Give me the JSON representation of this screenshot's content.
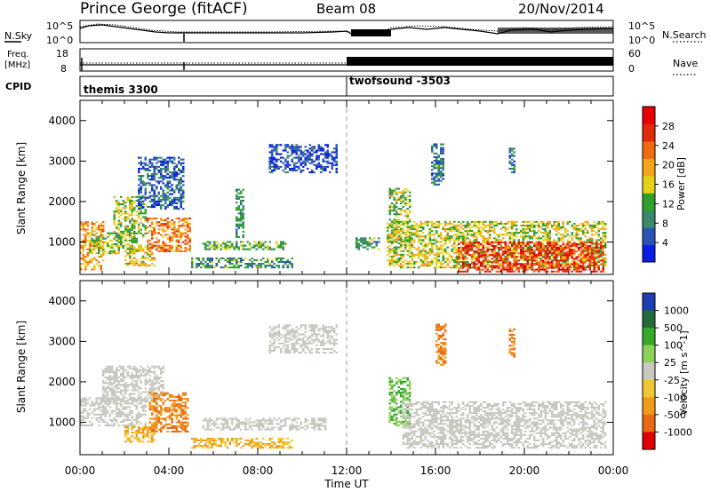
{
  "header": {
    "station": "Prince George (fitACF)",
    "beam": "Beam 08",
    "date": "20/Nov/2014"
  },
  "noise_panel": {
    "left_label": "N.Sky",
    "right_label": "N.Search",
    "left_ticks": [
      "10^5",
      "10^0"
    ],
    "right_ticks": [
      "10^5",
      "10^0"
    ]
  },
  "freq_panel": {
    "left_label_1": "Freq.",
    "left_label_2": "[MHz]",
    "right_label": "Nave",
    "left_ticks": [
      "18",
      "8"
    ],
    "right_ticks": [
      "60",
      "0"
    ]
  },
  "cpid_panel": {
    "label": "CPID",
    "modes": [
      {
        "name": "themis 3300",
        "start_hour": 0
      },
      {
        "name": "twofsound -3503",
        "start_hour": 12
      }
    ]
  },
  "colors": {
    "power_scale": [
      "#0a1ee6",
      "#2a55b4",
      "#3a8a6a",
      "#2fa12a",
      "#e4d21a",
      "#f2a41a",
      "#f06a12",
      "#e02a0a",
      "#e80000"
    ],
    "velocity_scale": [
      "#1e3fb0",
      "#256b3a",
      "#36a82a",
      "#8ed15a",
      "#c8c8c0",
      "#f2c832",
      "#f09a18",
      "#e86a14",
      "#e10000"
    ]
  },
  "chart_data": [
    {
      "type": "heatmap",
      "panel": "power",
      "ylabel": "Slant Range [km]",
      "ylim": [
        200,
        4500
      ],
      "yticks": [
        "1000",
        "2000",
        "3000",
        "4000"
      ],
      "xlim_hours": [
        0,
        24
      ],
      "colorbar": {
        "label": "Power [dB]",
        "ticks": [
          "4",
          "8",
          "12",
          "16",
          "20",
          "24",
          "28"
        ],
        "range": [
          0,
          32
        ]
      },
      "echo_regions": [
        {
          "t0": 0.0,
          "t1": 1.0,
          "r0": 300,
          "r1": 1500,
          "level": 20
        },
        {
          "t0": 0.4,
          "t1": 2.6,
          "r0": 700,
          "r1": 1200,
          "level": 14
        },
        {
          "t0": 1.5,
          "t1": 3.0,
          "r0": 1100,
          "r1": 2100,
          "level": 14
        },
        {
          "t0": 2.0,
          "t1": 3.4,
          "r0": 400,
          "r1": 900,
          "level": 18
        },
        {
          "t0": 3.0,
          "t1": 4.9,
          "r0": 750,
          "r1": 1600,
          "level": 22
        },
        {
          "t0": 2.6,
          "t1": 4.6,
          "r0": 1800,
          "r1": 3100,
          "level": 6
        },
        {
          "t0": 5.0,
          "t1": 9.5,
          "r0": 350,
          "r1": 600,
          "level": 10
        },
        {
          "t0": 5.5,
          "t1": 9.2,
          "r0": 800,
          "r1": 1000,
          "level": 12
        },
        {
          "t0": 7.0,
          "t1": 7.3,
          "r0": 1100,
          "r1": 2300,
          "level": 9
        },
        {
          "t0": 8.5,
          "t1": 11.5,
          "r0": 2700,
          "r1": 3400,
          "level": 4
        },
        {
          "t0": 12.4,
          "t1": 13.4,
          "r0": 800,
          "r1": 1100,
          "level": 10
        },
        {
          "t0": 13.9,
          "t1": 14.8,
          "r0": 900,
          "r1": 2300,
          "level": 14
        },
        {
          "t0": 13.8,
          "t1": 23.7,
          "r0": 350,
          "r1": 1500,
          "level": 16
        },
        {
          "t0": 17.0,
          "t1": 23.6,
          "r0": 250,
          "r1": 1000,
          "level": 27
        },
        {
          "t0": 15.8,
          "t1": 16.4,
          "r0": 2400,
          "r1": 3400,
          "level": 8
        },
        {
          "t0": 19.3,
          "t1": 19.6,
          "r0": 2700,
          "r1": 3300,
          "level": 8
        }
      ]
    },
    {
      "type": "heatmap",
      "panel": "velocity",
      "ylabel": "Slant Range [km]",
      "xlabel": "Time UT",
      "ylim": [
        200,
        4500
      ],
      "yticks": [
        "1000",
        "2000",
        "3000",
        "4000"
      ],
      "xticks": [
        "00:00",
        "04:00",
        "08:00",
        "12:00",
        "16:00",
        "20:00",
        "00:00"
      ],
      "xlim_hours": [
        0,
        24
      ],
      "colorbar": {
        "label": "Velocity  [m s^-1]",
        "ticks": [
          "1000",
          "500",
          "100",
          "25",
          "-25",
          "-100",
          "-500",
          "-1000"
        ]
      },
      "echo_regions": [
        {
          "t0": 0.0,
          "t1": 3.0,
          "r0": 900,
          "r1": 1600,
          "level": 0
        },
        {
          "t0": 1.0,
          "t1": 3.8,
          "r0": 1500,
          "r1": 2400,
          "level": 0
        },
        {
          "t0": 2.0,
          "t1": 3.4,
          "r0": 500,
          "r1": 900,
          "level": -100
        },
        {
          "t0": 3.1,
          "t1": 4.8,
          "r0": 750,
          "r1": 1700,
          "level": -500
        },
        {
          "t0": 5.0,
          "t1": 9.5,
          "r0": 350,
          "r1": 600,
          "level": -100
        },
        {
          "t0": 5.5,
          "t1": 11.0,
          "r0": 800,
          "r1": 1100,
          "level": 0
        },
        {
          "t0": 8.5,
          "t1": 11.5,
          "r0": 2700,
          "r1": 3400,
          "level": 0
        },
        {
          "t0": 13.9,
          "t1": 14.8,
          "r0": 900,
          "r1": 2100,
          "level": 100
        },
        {
          "t0": 14.5,
          "t1": 23.7,
          "r0": 350,
          "r1": 1500,
          "level": 0
        },
        {
          "t0": 16.0,
          "t1": 16.5,
          "r0": 2400,
          "r1": 3400,
          "level": -500
        },
        {
          "t0": 19.3,
          "t1": 19.6,
          "r0": 2600,
          "r1": 3300,
          "level": -500
        }
      ]
    }
  ]
}
